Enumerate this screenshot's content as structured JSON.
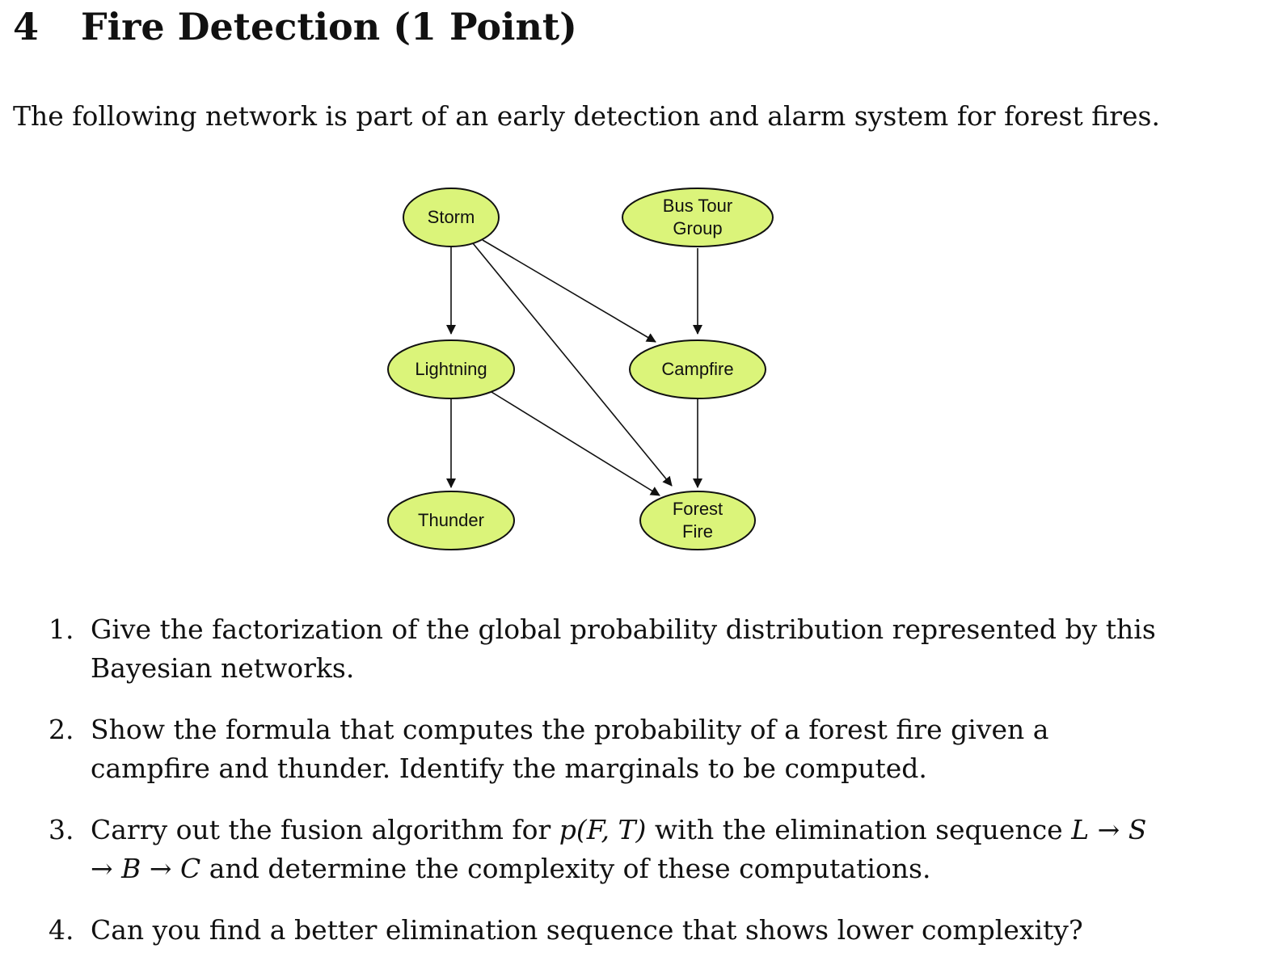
{
  "section": {
    "number": "4",
    "title": "Fire Detection (1 Point)"
  },
  "intro": "The following network is part of an early detection and alarm system for forest fires.",
  "diagram": {
    "node_fill": "#dbf47a",
    "node_stroke": "#111111",
    "nodes": {
      "storm": [
        "Storm"
      ],
      "bus_tour": [
        "Bus Tour",
        "Group"
      ],
      "lightning": [
        "Lightning"
      ],
      "campfire": [
        "Campfire"
      ],
      "thunder": [
        "Thunder"
      ],
      "forest_fire": [
        "Forest",
        "Fire"
      ]
    },
    "edges": [
      [
        "Storm",
        "Lightning"
      ],
      [
        "Storm",
        "Campfire"
      ],
      [
        "Storm",
        "Forest Fire"
      ],
      [
        "Bus Tour Group",
        "Campfire"
      ],
      [
        "Lightning",
        "Thunder"
      ],
      [
        "Lightning",
        "Forest Fire"
      ],
      [
        "Campfire",
        "Forest Fire"
      ]
    ]
  },
  "questions": [
    {
      "num": "1.",
      "text": "Give the factorization of the global probability distribution represented by this Bayesian networks."
    },
    {
      "num": "2.",
      "text": "Show the formula that computes the probability of a forest fire given a campfire and thunder. Identify the marginals to be computed."
    },
    {
      "num": "3.",
      "pre": "Carry out the fusion algorithm for ",
      "expr": "p(F, T)",
      "mid": " with the elimination sequence ",
      "seq": "L → S → B → C",
      "post": " and determine the complexity of these computations."
    },
    {
      "num": "4.",
      "text": "Can you find a better elimination sequence that shows lower complexity?"
    }
  ]
}
